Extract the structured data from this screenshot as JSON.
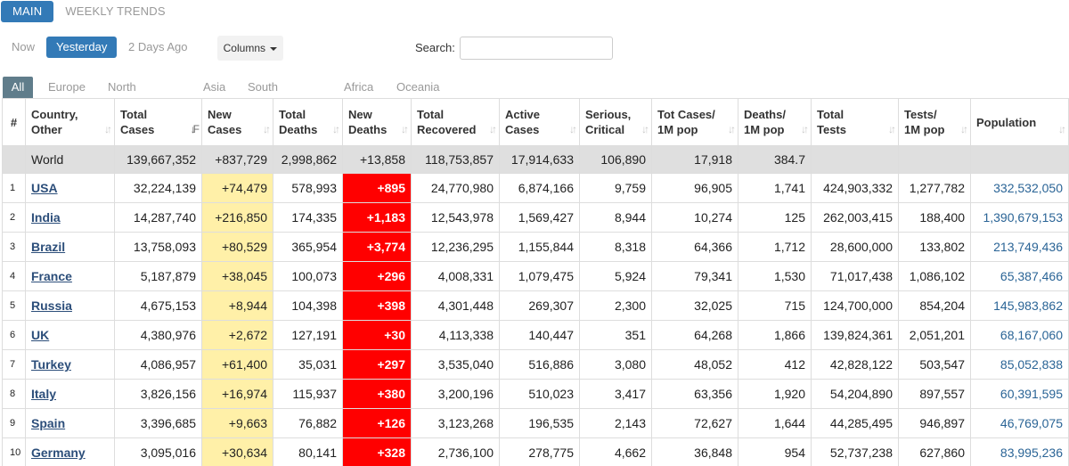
{
  "top_tabs": [
    "MAIN",
    "WEEKLY TRENDS"
  ],
  "time_filters": [
    "Now",
    "Yesterday",
    "2 Days Ago"
  ],
  "columns_label": "Columns",
  "search_label": "Search:",
  "regions": [
    "All",
    "Europe",
    "North America",
    "Asia",
    "South America",
    "Africa",
    "Oceania"
  ],
  "headers": {
    "hash": "#",
    "country": [
      "Country,",
      "Other"
    ],
    "total_cases": [
      "Total",
      "Cases"
    ],
    "new_cases": [
      "New",
      "Cases"
    ],
    "total_deaths": [
      "Total",
      "Deaths"
    ],
    "new_deaths": [
      "New",
      "Deaths"
    ],
    "total_recovered": [
      "Total",
      "Recovered"
    ],
    "active_cases": [
      "Active",
      "Cases"
    ],
    "serious": [
      "Serious,",
      "Critical"
    ],
    "cases_per_m": [
      "Tot Cases/",
      "1M pop"
    ],
    "deaths_per_m": [
      "Deaths/",
      "1M pop"
    ],
    "total_tests": [
      "Total",
      "Tests"
    ],
    "tests_per_m": [
      "Tests/",
      "1M pop"
    ],
    "population": [
      "Population"
    ]
  },
  "world": {
    "name": "World",
    "total_cases": "139,667,352",
    "new_cases": "+837,729",
    "total_deaths": "2,998,862",
    "new_deaths": "+13,858",
    "total_recovered": "118,753,857",
    "active_cases": "17,914,633",
    "serious": "106,890",
    "cases_per_m": "17,918",
    "deaths_per_m": "384.7",
    "total_tests": "",
    "tests_per_m": "",
    "population": ""
  },
  "rows": [
    {
      "idx": "1",
      "name": "USA",
      "total_cases": "32,224,139",
      "new_cases": "+74,479",
      "total_deaths": "578,993",
      "new_deaths": "+895",
      "total_recovered": "24,770,980",
      "active_cases": "6,874,166",
      "serious": "9,759",
      "cases_per_m": "96,905",
      "deaths_per_m": "1,741",
      "total_tests": "424,903,332",
      "tests_per_m": "1,277,782",
      "population": "332,532,050"
    },
    {
      "idx": "2",
      "name": "India",
      "total_cases": "14,287,740",
      "new_cases": "+216,850",
      "total_deaths": "174,335",
      "new_deaths": "+1,183",
      "total_recovered": "12,543,978",
      "active_cases": "1,569,427",
      "serious": "8,944",
      "cases_per_m": "10,274",
      "deaths_per_m": "125",
      "total_tests": "262,003,415",
      "tests_per_m": "188,400",
      "population": "1,390,679,153"
    },
    {
      "idx": "3",
      "name": "Brazil",
      "total_cases": "13,758,093",
      "new_cases": "+80,529",
      "total_deaths": "365,954",
      "new_deaths": "+3,774",
      "total_recovered": "12,236,295",
      "active_cases": "1,155,844",
      "serious": "8,318",
      "cases_per_m": "64,366",
      "deaths_per_m": "1,712",
      "total_tests": "28,600,000",
      "tests_per_m": "133,802",
      "population": "213,749,436"
    },
    {
      "idx": "4",
      "name": "France",
      "total_cases": "5,187,879",
      "new_cases": "+38,045",
      "total_deaths": "100,073",
      "new_deaths": "+296",
      "total_recovered": "4,008,331",
      "active_cases": "1,079,475",
      "serious": "5,924",
      "cases_per_m": "79,341",
      "deaths_per_m": "1,530",
      "total_tests": "71,017,438",
      "tests_per_m": "1,086,102",
      "population": "65,387,466"
    },
    {
      "idx": "5",
      "name": "Russia",
      "total_cases": "4,675,153",
      "new_cases": "+8,944",
      "total_deaths": "104,398",
      "new_deaths": "+398",
      "total_recovered": "4,301,448",
      "active_cases": "269,307",
      "serious": "2,300",
      "cases_per_m": "32,025",
      "deaths_per_m": "715",
      "total_tests": "124,700,000",
      "tests_per_m": "854,204",
      "population": "145,983,862"
    },
    {
      "idx": "6",
      "name": "UK",
      "total_cases": "4,380,976",
      "new_cases": "+2,672",
      "total_deaths": "127,191",
      "new_deaths": "+30",
      "total_recovered": "4,113,338",
      "active_cases": "140,447",
      "serious": "351",
      "cases_per_m": "64,268",
      "deaths_per_m": "1,866",
      "total_tests": "139,824,361",
      "tests_per_m": "2,051,201",
      "population": "68,167,060"
    },
    {
      "idx": "7",
      "name": "Turkey",
      "total_cases": "4,086,957",
      "new_cases": "+61,400",
      "total_deaths": "35,031",
      "new_deaths": "+297",
      "total_recovered": "3,535,040",
      "active_cases": "516,886",
      "serious": "3,080",
      "cases_per_m": "48,052",
      "deaths_per_m": "412",
      "total_tests": "42,828,122",
      "tests_per_m": "503,547",
      "population": "85,052,838"
    },
    {
      "idx": "8",
      "name": "Italy",
      "total_cases": "3,826,156",
      "new_cases": "+16,974",
      "total_deaths": "115,937",
      "new_deaths": "+380",
      "total_recovered": "3,200,196",
      "active_cases": "510,023",
      "serious": "3,417",
      "cases_per_m": "63,356",
      "deaths_per_m": "1,920",
      "total_tests": "54,204,890",
      "tests_per_m": "897,557",
      "population": "60,391,595"
    },
    {
      "idx": "9",
      "name": "Spain",
      "total_cases": "3,396,685",
      "new_cases": "+9,663",
      "total_deaths": "76,882",
      "new_deaths": "+126",
      "total_recovered": "3,123,268",
      "active_cases": "196,535",
      "serious": "2,143",
      "cases_per_m": "72,627",
      "deaths_per_m": "1,644",
      "total_tests": "44,285,495",
      "tests_per_m": "946,897",
      "population": "46,769,075"
    },
    {
      "idx": "10",
      "name": "Germany",
      "total_cases": "3,095,016",
      "new_cases": "+30,634",
      "total_deaths": "80,141",
      "new_deaths": "+328",
      "total_recovered": "2,736,100",
      "active_cases": "278,775",
      "serious": "4,662",
      "cases_per_m": "36,848",
      "deaths_per_m": "954",
      "total_tests": "52,737,238",
      "tests_per_m": "627,860",
      "population": "83,995,236"
    }
  ],
  "colors": {
    "accent": "#337ab7",
    "region_active": "#607d8b",
    "new_cases_bg": "#fff0a8",
    "new_deaths_bg": "#ff0000",
    "world_row_bg": "#dfdfdf",
    "link": "#2c4e7a",
    "population_text": "#2a6496"
  },
  "icons": {
    "sort": "sort-arrows-icon",
    "sort_active": "sort-desc-icon",
    "columns_caret": "caret-down-icon"
  }
}
